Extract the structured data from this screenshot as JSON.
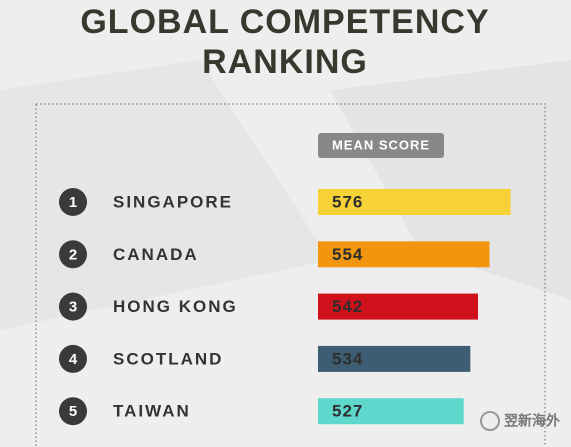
{
  "chart_data": {
    "type": "hbar",
    "title": "GLOBAL COMPETENCY RANKING",
    "value_header": "MEAN SCORE",
    "ranks": [
      1,
      2,
      3,
      4,
      5
    ],
    "categories": [
      "SINGAPORE",
      "CANADA",
      "HONG KONG",
      "SCOTLAND",
      "TAIWAN"
    ],
    "values": [
      576,
      554,
      542,
      534,
      527
    ],
    "colors": [
      "#f6d236",
      "#f2960f",
      "#cf111b",
      "#3d5e72",
      "#5ed8cc"
    ],
    "xlim": [
      375,
      590
    ]
  },
  "watermark": "翌新海外"
}
